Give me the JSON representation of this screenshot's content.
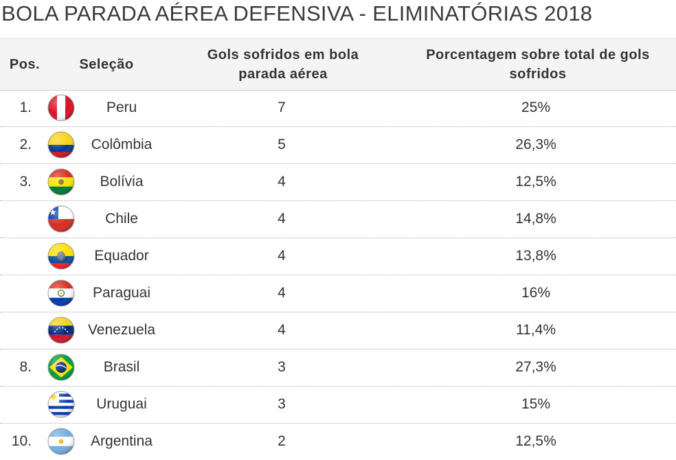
{
  "title": "BOLA PARADA AÉREA DEFENSIVA - ELIMINATÓRIAS 2018",
  "headers": {
    "pos": "Pos.",
    "selecao": "Seleção",
    "gols": "Gols sofridos em bola parada aérea",
    "pct": "Porcentagem sobre total de gols sofridos"
  },
  "rows": [
    {
      "pos": "1.",
      "team": "Peru",
      "flag": "peru-flag-icon",
      "gols": "7",
      "pct": "25%"
    },
    {
      "pos": "2.",
      "team": "Colômbia",
      "flag": "colombia-flag-icon",
      "gols": "5",
      "pct": "26,3%"
    },
    {
      "pos": "3.",
      "team": "Bolívia",
      "flag": "bolivia-flag-icon",
      "gols": "4",
      "pct": "12,5%"
    },
    {
      "pos": "",
      "team": "Chile",
      "flag": "chile-flag-icon",
      "gols": "4",
      "pct": "14,8%"
    },
    {
      "pos": "",
      "team": "Equador",
      "flag": "ecuador-flag-icon",
      "gols": "4",
      "pct": "13,8%"
    },
    {
      "pos": "",
      "team": "Paraguai",
      "flag": "paraguay-flag-icon",
      "gols": "4",
      "pct": "16%"
    },
    {
      "pos": "",
      "team": "Venezuela",
      "flag": "venezuela-flag-icon",
      "gols": "4",
      "pct": "11,4%"
    },
    {
      "pos": "8.",
      "team": "Brasil",
      "flag": "brazil-flag-icon",
      "gols": "3",
      "pct": "27,3%"
    },
    {
      "pos": "",
      "team": "Uruguai",
      "flag": "uruguay-flag-icon",
      "gols": "3",
      "pct": "15%"
    },
    {
      "pos": "10.",
      "team": "Argentina",
      "flag": "argentina-flag-icon",
      "gols": "2",
      "pct": "12,5%"
    }
  ],
  "colors": {
    "header_bg": "#f4f4f4",
    "text": "#333333",
    "divider": "#a9a9a9"
  }
}
